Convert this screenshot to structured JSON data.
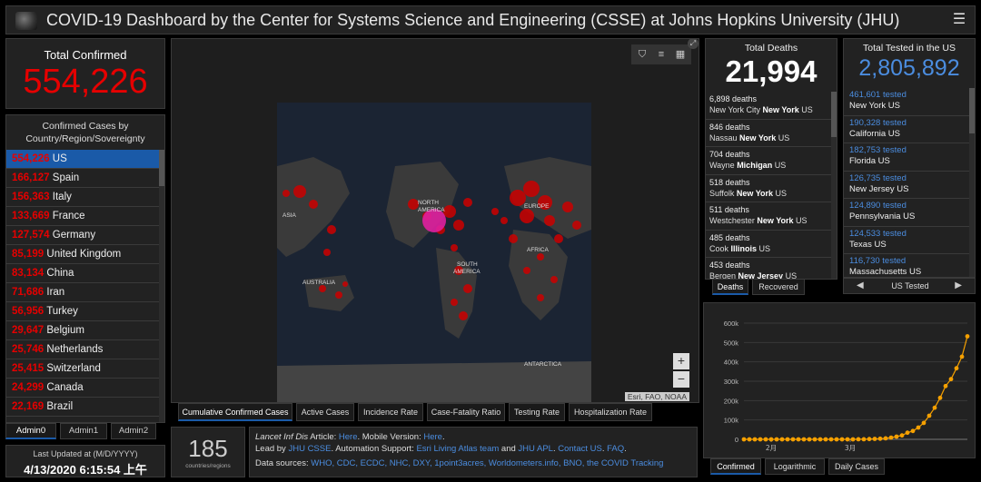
{
  "header": {
    "title": "COVID-19 Dashboard by the Center for Systems Science and Engineering (CSSE) at Johns Hopkins University (JHU)",
    "menu_icon": "hamburger-icon"
  },
  "total_confirmed": {
    "label": "Total Confirmed",
    "value": "554,226"
  },
  "country_panel": {
    "heading_line1": "Confirmed Cases by",
    "heading_line2": "Country/Region/Sovereignty",
    "rows": [
      {
        "num": "554,226",
        "name": "US"
      },
      {
        "num": "166,127",
        "name": "Spain"
      },
      {
        "num": "156,363",
        "name": "Italy"
      },
      {
        "num": "133,669",
        "name": "France"
      },
      {
        "num": "127,574",
        "name": "Germany"
      },
      {
        "num": "85,199",
        "name": "United Kingdom"
      },
      {
        "num": "83,134",
        "name": "China"
      },
      {
        "num": "71,686",
        "name": "Iran"
      },
      {
        "num": "56,956",
        "name": "Turkey"
      },
      {
        "num": "29,647",
        "name": "Belgium"
      },
      {
        "num": "25,746",
        "name": "Netherlands"
      },
      {
        "num": "25,415",
        "name": "Switzerland"
      },
      {
        "num": "24,299",
        "name": "Canada"
      },
      {
        "num": "22,169",
        "name": "Brazil"
      }
    ]
  },
  "admin_tabs": [
    "Admin0",
    "Admin1",
    "Admin2"
  ],
  "last_updated": {
    "label": "Last Updated at (M/D/YYYY)",
    "value": "4/13/2020 6:15:54 上午"
  },
  "map": {
    "labels": {
      "asia": "ASIA",
      "north_america": "NORTH\nAMERICA",
      "europe": "EUROPE",
      "africa": "AFRICA",
      "south_america": "SOUTH\nAMERICA",
      "australia": "AUSTRALIA",
      "antarctica": "ANTARCTICA"
    },
    "attribution": "Esri, FAO, NOAA",
    "zoom_in": "+",
    "zoom_out": "−",
    "tabs": [
      "Cumulative Confirmed Cases",
      "Active Cases",
      "Incidence Rate",
      "Case-Fatality Ratio",
      "Testing Rate",
      "Hospitalization Rate"
    ]
  },
  "countries_count": {
    "value": "185",
    "label": "countries/regions"
  },
  "info": {
    "line1_a": "Lancet Inf Dis",
    "line1_b": " Article: ",
    "line1_here1": "Here",
    "line1_c": ". Mobile Version: ",
    "line1_here2": "Here",
    "line1_d": ".",
    "line2_a": "Lead by ",
    "line2_jhu": "JHU CSSE",
    "line2_b": ". Automation Support: ",
    "line2_esri": "Esri Living Atlas team",
    "line2_c": " and ",
    "line2_apl": "JHU APL",
    "line2_d": ". ",
    "line2_contact": "Contact US",
    "line2_e": ". ",
    "line2_faq": "FAQ",
    "line2_f": ".",
    "line3_a": "Data sources: ",
    "line3_links": "WHO, CDC, ECDC, NHC, DXY, 1point3acres, Worldometers.info, BNO, the COVID Tracking"
  },
  "deaths": {
    "label": "Total Deaths",
    "value": "21,994",
    "rows": [
      {
        "d": "6,898 deaths",
        "loc": "New York City ",
        "st": "New York",
        "cc": " US"
      },
      {
        "d": "846 deaths",
        "loc": "Nassau ",
        "st": "New York",
        "cc": " US"
      },
      {
        "d": "704 deaths",
        "loc": "Wayne ",
        "st": "Michigan",
        "cc": " US"
      },
      {
        "d": "518 deaths",
        "loc": "Suffolk ",
        "st": "New York",
        "cc": " US"
      },
      {
        "d": "511 deaths",
        "loc": "Westchester ",
        "st": "New York",
        "cc": " US"
      },
      {
        "d": "485 deaths",
        "loc": "Cook ",
        "st": "Illinois",
        "cc": " US"
      },
      {
        "d": "453 deaths",
        "loc": "Bergen ",
        "st": "New Jersey",
        "cc": " US"
      }
    ],
    "tabs": [
      "Deaths",
      "Recovered"
    ]
  },
  "tested": {
    "label": "Total Tested in the US",
    "value": "2,805,892",
    "rows": [
      {
        "t": "461,601 tested",
        "loc": "New York US"
      },
      {
        "t": "190,328 tested",
        "loc": "California US"
      },
      {
        "t": "182,753 tested",
        "loc": "Florida US"
      },
      {
        "t": "126,735 tested",
        "loc": "New Jersey US"
      },
      {
        "t": "124,890 tested",
        "loc": "Pennsylvania US"
      },
      {
        "t": "124,533 tested",
        "loc": "Texas US"
      },
      {
        "t": "116,730 tested",
        "loc": "Massachusetts US"
      }
    ],
    "nav_label": "US Tested",
    "prev_icon": "◀",
    "next_icon": "▶"
  },
  "chart_data": {
    "type": "line",
    "ytick_labels": [
      "0",
      "100k",
      "200k",
      "300k",
      "400k",
      "500k",
      "600k"
    ],
    "ylim": [
      0,
      600000
    ],
    "xtick_labels": [
      "2月",
      "3月"
    ],
    "xtick_positions": [
      10,
      39
    ],
    "xlim": [
      0,
      82
    ],
    "x": [
      0,
      2,
      4,
      6,
      8,
      10,
      12,
      14,
      16,
      18,
      20,
      22,
      24,
      26,
      28,
      30,
      32,
      34,
      36,
      38,
      40,
      42,
      44,
      46,
      48,
      50,
      52,
      54,
      56,
      58,
      60,
      62,
      64,
      66,
      68,
      70,
      72,
      74,
      76,
      78,
      80,
      82
    ],
    "values": [
      1,
      2,
      5,
      8,
      11,
      12,
      13,
      13,
      14,
      14,
      15,
      15,
      15,
      60,
      64,
      68,
      70,
      80,
      100,
      150,
      200,
      300,
      500,
      1200,
      2500,
      3500,
      5000,
      9000,
      14000,
      20000,
      34000,
      43000,
      61000,
      85000,
      122000,
      163000,
      214000,
      275000,
      311000,
      367000,
      427000,
      532000
    ],
    "color": "#f5a000",
    "tabs": [
      "Confirmed",
      "Logarithmic",
      "Daily Cases"
    ]
  }
}
